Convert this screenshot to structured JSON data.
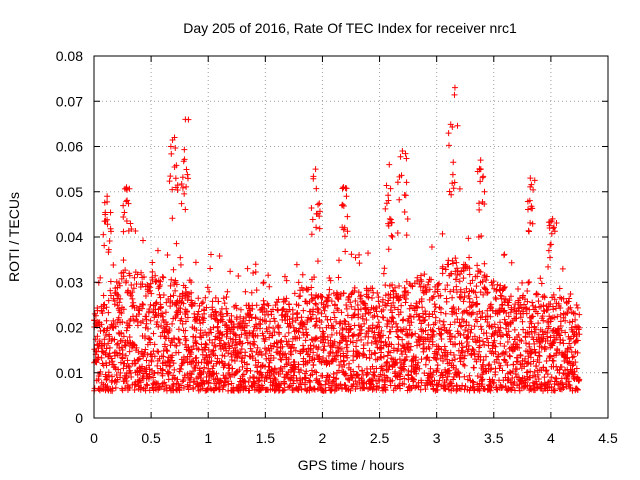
{
  "chart_data": {
    "type": "scatter",
    "title": "Day 205 of 2016, Rate Of TEC Index for receiver nrc1",
    "xlabel": "GPS time / hours",
    "ylabel": "ROTI / TECUs",
    "xlim": [
      0,
      4.5
    ],
    "ylim": [
      0,
      0.08
    ],
    "xticks": [
      0,
      0.5,
      1,
      1.5,
      2,
      2.5,
      3,
      3.5,
      4,
      4.5
    ],
    "xtick_labels": [
      "0",
      "0.5",
      "1",
      "1.5",
      "2",
      "2.5",
      "3",
      "3.5",
      "4",
      "4.5"
    ],
    "yticks": [
      0,
      0.01,
      0.02,
      0.03,
      0.04,
      0.05,
      0.06,
      0.07,
      0.08
    ],
    "ytick_labels": [
      "0",
      "0.01",
      "0.02",
      "0.03",
      "0.04",
      "0.05",
      "0.06",
      "0.07",
      "0.08"
    ],
    "grid": true,
    "marker": "+",
    "marker_color": "#ff0000",
    "points_x_per_hour": 200,
    "x_end": 4.25,
    "base_envelope": [
      [
        0.0,
        0.013
      ],
      [
        0.1,
        0.016
      ],
      [
        0.3,
        0.019
      ],
      [
        0.5,
        0.018
      ],
      [
        0.7,
        0.017
      ],
      [
        1.0,
        0.014
      ],
      [
        1.3,
        0.013
      ],
      [
        1.6,
        0.014
      ],
      [
        1.9,
        0.016
      ],
      [
        2.2,
        0.015
      ],
      [
        2.5,
        0.016
      ],
      [
        2.8,
        0.017
      ],
      [
        3.1,
        0.02
      ],
      [
        3.3,
        0.019
      ],
      [
        3.6,
        0.016
      ],
      [
        3.9,
        0.015
      ],
      [
        4.25,
        0.014
      ]
    ],
    "bursts": [
      {
        "x": [
          0.08,
          0.15
        ],
        "y": [
          0.038,
          0.049
        ]
      },
      {
        "x": [
          0.25,
          0.32
        ],
        "y": [
          0.04,
          0.051
        ]
      },
      {
        "x": [
          0.66,
          0.75
        ],
        "y": [
          0.044,
          0.062
        ]
      },
      {
        "x": [
          0.76,
          0.84
        ],
        "y": [
          0.043,
          0.066
        ]
      },
      {
        "x": [
          1.9,
          1.98
        ],
        "y": [
          0.04,
          0.055
        ]
      },
      {
        "x": [
          2.15,
          2.22
        ],
        "y": [
          0.04,
          0.051
        ]
      },
      {
        "x": [
          2.55,
          2.62
        ],
        "y": [
          0.04,
          0.056
        ]
      },
      {
        "x": [
          2.65,
          2.75
        ],
        "y": [
          0.04,
          0.059
        ]
      },
      {
        "x": [
          3.1,
          3.22
        ],
        "y": [
          0.045,
          0.073
        ]
      },
      {
        "x": [
          3.35,
          3.42
        ],
        "y": [
          0.04,
          0.057
        ]
      },
      {
        "x": [
          3.78,
          3.86
        ],
        "y": [
          0.04,
          0.053
        ]
      },
      {
        "x": [
          3.98,
          4.05
        ],
        "y": [
          0.035,
          0.044
        ]
      }
    ],
    "seed": 205
  }
}
